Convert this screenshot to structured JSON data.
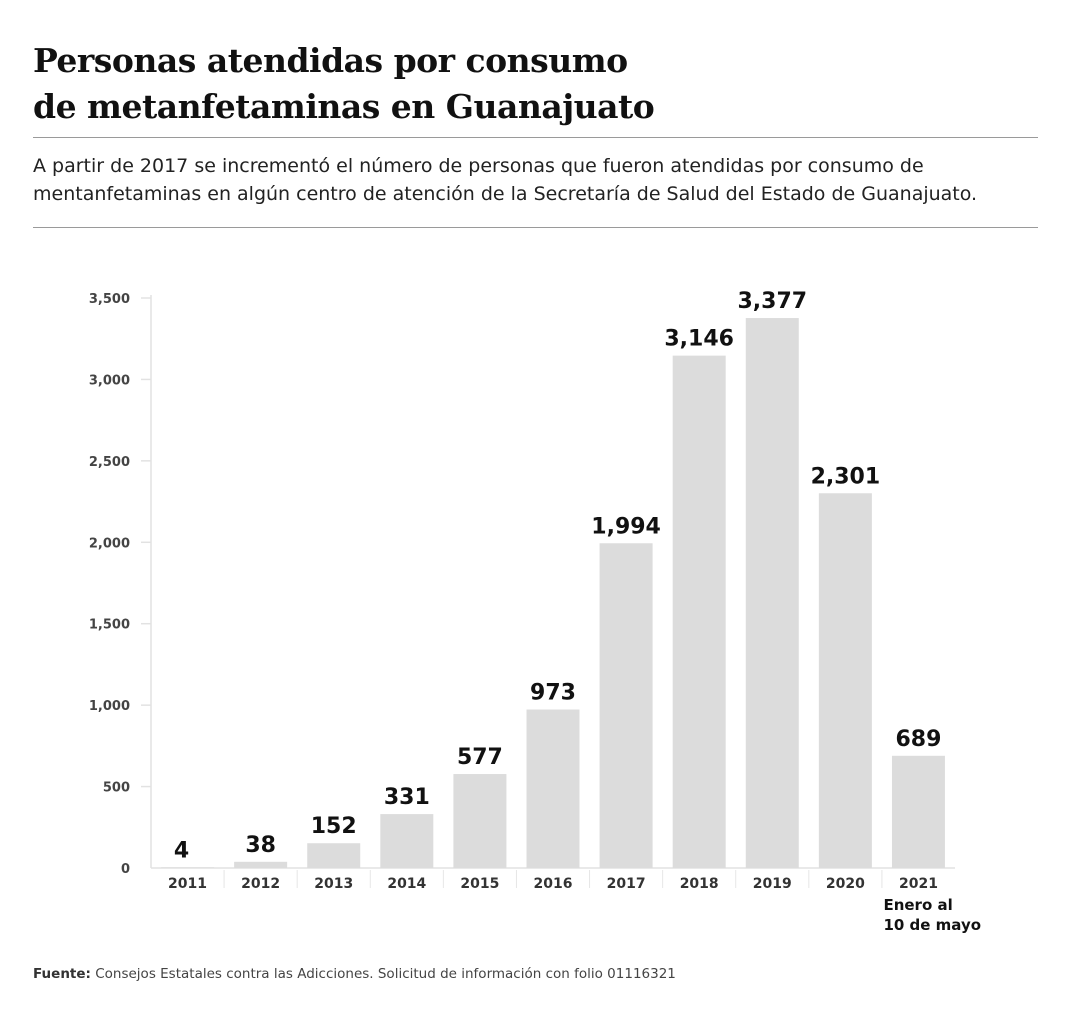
{
  "header": {
    "title_line1": "Personas atendidas por consumo",
    "title_line2": "de metanfetaminas en Guanajuato",
    "subtitle": "A partir de 2017 se incrementó el número de personas que fueron atendidas por consumo de mentanfetaminas en algún centro de atención de la Secretaría de Salud del Estado de Guanajuato."
  },
  "footer": {
    "source_label": "Fuente:",
    "source_text": " Consejos Estatales contra las Adicciones. Solicitud de información con folio 01116321"
  },
  "chart_data": {
    "type": "bar",
    "categories": [
      "2011",
      "2012",
      "2013",
      "2014",
      "2015",
      "2016",
      "2017",
      "2018",
      "2019",
      "2020",
      "2021"
    ],
    "category_notes": {
      "2021": [
        "Enero al",
        "10 de mayo"
      ]
    },
    "values": [
      4,
      38,
      152,
      331,
      577,
      973,
      1994,
      3146,
      3377,
      2301,
      689
    ],
    "data_labels": [
      "4",
      "38",
      "152",
      "331",
      "577",
      "973",
      "1,994",
      "3,146",
      "3,377",
      "2,301",
      "689"
    ],
    "yticks": [
      0,
      500,
      1000,
      1500,
      2000,
      2500,
      3000,
      3500
    ],
    "ytick_labels": [
      "0",
      "500",
      "1,000",
      "1,500",
      "2,000",
      "2,500",
      "3,000",
      "3,500"
    ],
    "ylim": [
      0,
      3500
    ],
    "grid": false,
    "bar_color": "#dcdcdc",
    "title": "",
    "xlabel": "",
    "ylabel": ""
  }
}
